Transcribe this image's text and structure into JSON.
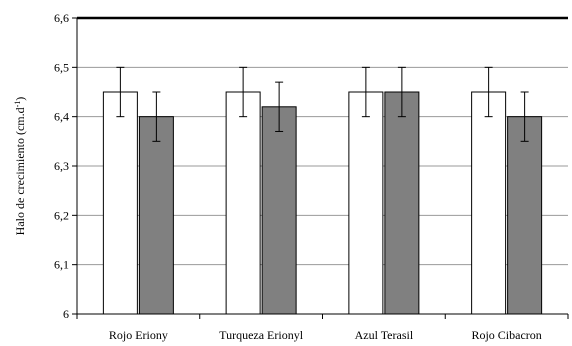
{
  "chart_data": {
    "type": "bar",
    "title": "",
    "xlabel": "",
    "ylabel": "Halo de crecimiento (cm.d",
    "ylabel_sup": "-1",
    "ylabel_close": ")",
    "categories": [
      "Rojo Eriony",
      "Turqueza Erionyl",
      "Azul Terasil",
      "Rojo Cibacron"
    ],
    "series": [
      {
        "values": [
          6.45,
          6.45,
          6.45,
          6.45
        ],
        "errors": [
          0.05,
          0.05,
          0.05,
          0.05
        ],
        "color": "#ffffff"
      },
      {
        "values": [
          6.4,
          6.42,
          6.45,
          6.4
        ],
        "errors": [
          0.05,
          0.05,
          0.05,
          0.05
        ],
        "color": "#808080"
      }
    ],
    "ylim": [
      6.0,
      6.6
    ],
    "yticks": [
      "6",
      "6,1",
      "6,2",
      "6,3",
      "6,4",
      "6,5",
      "6,6"
    ],
    "grid": true,
    "legend": "none"
  }
}
